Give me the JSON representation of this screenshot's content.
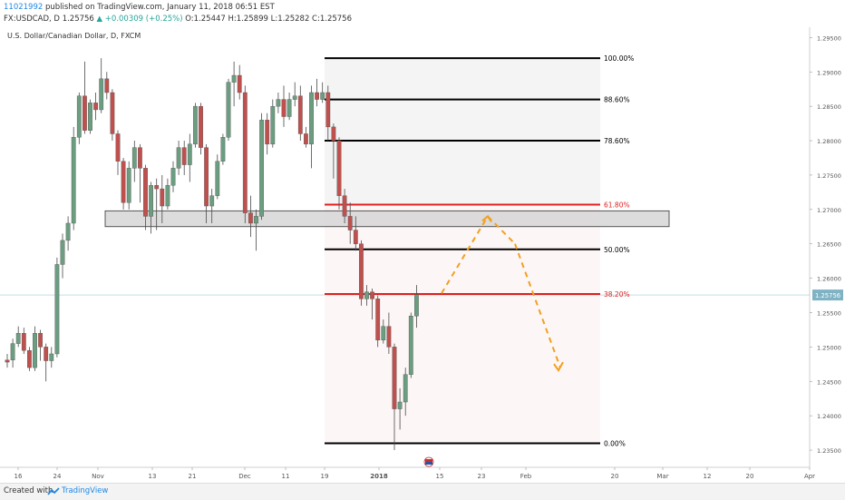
{
  "header": {
    "user_id": "11021992",
    "published_text": "published on TradingView.com, January 11, 2018 06:51 EST",
    "symbol_prefix": "FX:USDCAD, D",
    "close_value": "1.25756",
    "change_arrow": "▲",
    "change_text": "+0.00309 (+0.25%)",
    "ohlc_text": "O:1.25447 H:1.25899 L:1.25282 C:1.25756"
  },
  "footer": {
    "created_with": "Created with",
    "brand": "TradingView"
  },
  "chart_data": {
    "type": "candlestick",
    "title": "U.S. Dollar/Canadian Dollar, D, FXCM",
    "ylim": [
      1.2325,
      1.2965
    ],
    "y_ticks": [
      "1.29500",
      "1.29000",
      "1.28500",
      "1.28000",
      "1.27500",
      "1.27000",
      "1.26500",
      "1.26000",
      "1.25500",
      "1.25000",
      "1.24500",
      "1.24000",
      "1.23500"
    ],
    "x_ticks": [
      "16",
      "24",
      "Nov",
      "13",
      "21",
      "Dec",
      "11",
      "19",
      "2018",
      "15",
      "23",
      "Feb",
      "20",
      "Mar",
      "12",
      "20",
      "Apr"
    ],
    "last_price": "1.25756",
    "colors": {
      "up": "#6b9e80",
      "down": "#c0504d",
      "fib_black": "#000000",
      "fib_red": "#e02020",
      "arrow": "#f0a020",
      "zone": "#d0d0d0"
    },
    "candles": [
      [
        1.2481,
        1.2478,
        1.247,
        1.249
      ],
      [
        1.2481,
        1.2505,
        1.247,
        1.2512
      ],
      [
        1.2505,
        1.252,
        1.25,
        1.253
      ],
      [
        1.252,
        1.2495,
        1.249,
        1.2528
      ],
      [
        1.2495,
        1.247,
        1.2465,
        1.25
      ],
      [
        1.247,
        1.252,
        1.2465,
        1.253
      ],
      [
        1.252,
        1.25,
        1.248,
        1.2525
      ],
      [
        1.25,
        1.248,
        1.245,
        1.2505
      ],
      [
        1.248,
        1.249,
        1.247,
        1.25
      ],
      [
        1.249,
        1.262,
        1.2485,
        1.263
      ],
      [
        1.262,
        1.2655,
        1.26,
        1.2665
      ],
      [
        1.2655,
        1.268,
        1.264,
        1.269
      ],
      [
        1.268,
        1.2805,
        1.267,
        1.282
      ],
      [
        1.2805,
        1.2865,
        1.2795,
        1.287
      ],
      [
        1.2865,
        1.2815,
        1.281,
        1.2915
      ],
      [
        1.2815,
        1.2855,
        1.281,
        1.286
      ],
      [
        1.2855,
        1.2845,
        1.283,
        1.287
      ],
      [
        1.2845,
        1.289,
        1.284,
        1.292
      ],
      [
        1.289,
        1.287,
        1.286,
        1.29
      ],
      [
        1.287,
        1.281,
        1.28,
        1.2875
      ],
      [
        1.281,
        1.277,
        1.275,
        1.2815
      ],
      [
        1.277,
        1.271,
        1.27,
        1.2775
      ],
      [
        1.271,
        1.276,
        1.27,
        1.277
      ],
      [
        1.276,
        1.279,
        1.274,
        1.28
      ],
      [
        1.279,
        1.276,
        1.271,
        1.2795
      ],
      [
        1.276,
        1.269,
        1.267,
        1.2765
      ],
      [
        1.269,
        1.2735,
        1.2665,
        1.274
      ],
      [
        1.2735,
        1.273,
        1.267,
        1.2745
      ],
      [
        1.273,
        1.2705,
        1.268,
        1.275
      ],
      [
        1.2705,
        1.2735,
        1.27,
        1.2745
      ],
      [
        1.2735,
        1.276,
        1.2725,
        1.277
      ],
      [
        1.276,
        1.279,
        1.275,
        1.28
      ],
      [
        1.279,
        1.2765,
        1.275,
        1.28
      ],
      [
        1.2765,
        1.2795,
        1.274,
        1.281
      ],
      [
        1.2795,
        1.285,
        1.279,
        1.2855
      ],
      [
        1.285,
        1.279,
        1.278,
        1.2855
      ],
      [
        1.279,
        1.2705,
        1.268,
        1.2795
      ],
      [
        1.2705,
        1.272,
        1.268,
        1.273
      ],
      [
        1.272,
        1.277,
        1.2715,
        1.278
      ],
      [
        1.277,
        1.2805,
        1.2765,
        1.281
      ],
      [
        1.2805,
        1.2885,
        1.28,
        1.289
      ],
      [
        1.2885,
        1.2895,
        1.285,
        1.2915
      ],
      [
        1.2895,
        1.287,
        1.286,
        1.291
      ],
      [
        1.287,
        1.2695,
        1.268,
        1.288
      ],
      [
        1.2695,
        1.268,
        1.266,
        1.272
      ],
      [
        1.268,
        1.269,
        1.264,
        1.27
      ],
      [
        1.269,
        1.283,
        1.2685,
        1.284
      ],
      [
        1.283,
        1.2795,
        1.278,
        1.284
      ],
      [
        1.2795,
        1.285,
        1.279,
        1.286
      ],
      [
        1.285,
        1.286,
        1.284,
        1.287
      ],
      [
        1.286,
        1.2835,
        1.282,
        1.288
      ],
      [
        1.2835,
        1.286,
        1.283,
        1.287
      ],
      [
        1.286,
        1.2865,
        1.285,
        1.2885
      ],
      [
        1.2865,
        1.281,
        1.28,
        1.288
      ],
      [
        1.281,
        1.2795,
        1.279,
        1.282
      ],
      [
        1.2795,
        1.287,
        1.276,
        1.288
      ],
      [
        1.287,
        1.286,
        1.285,
        1.289
      ],
      [
        1.286,
        1.287,
        1.2855,
        1.2885
      ],
      [
        1.287,
        1.282,
        1.28,
        1.288
      ],
      [
        1.282,
        1.28,
        1.2745,
        1.2825
      ],
      [
        1.28,
        1.272,
        1.27,
        1.2805
      ],
      [
        1.272,
        1.269,
        1.268,
        1.273
      ],
      [
        1.269,
        1.267,
        1.265,
        1.271
      ],
      [
        1.267,
        1.265,
        1.264,
        1.269
      ],
      [
        1.265,
        1.257,
        1.256,
        1.2655
      ],
      [
        1.257,
        1.258,
        1.256,
        1.259
      ],
      [
        1.258,
        1.257,
        1.254,
        1.2585
      ],
      [
        1.257,
        1.251,
        1.25,
        1.2575
      ],
      [
        1.251,
        1.253,
        1.2505,
        1.254
      ],
      [
        1.253,
        1.25,
        1.249,
        1.255
      ],
      [
        1.25,
        1.241,
        1.235,
        1.2505
      ],
      [
        1.241,
        1.242,
        1.238,
        1.244
      ],
      [
        1.242,
        1.246,
        1.24,
        1.247
      ],
      [
        1.246,
        1.2545,
        1.2455,
        1.255
      ],
      [
        1.2545,
        1.2576,
        1.2528,
        1.259
      ]
    ],
    "fibonacci": [
      {
        "label": "100.00%",
        "price": 1.292,
        "color": "#000000"
      },
      {
        "label": "88.60%",
        "price": 1.286,
        "color": "#000000"
      },
      {
        "label": "78.60%",
        "price": 1.28,
        "color": "#000000"
      },
      {
        "label": "61.80%",
        "price": 1.2707,
        "color": "#e02020"
      },
      {
        "label": "50.00%",
        "price": 1.2642,
        "color": "#000000"
      },
      {
        "label": "38.20%",
        "price": 1.2577,
        "color": "#e02020"
      },
      {
        "label": "0.00%",
        "price": 1.236,
        "color": "#000000"
      }
    ],
    "zone": {
      "top": 1.2698,
      "bottom": 1.2675
    },
    "projection_path": [
      [
        1.2578
      ],
      [
        1.269
      ],
      [
        1.265
      ],
      [
        1.247
      ]
    ]
  }
}
